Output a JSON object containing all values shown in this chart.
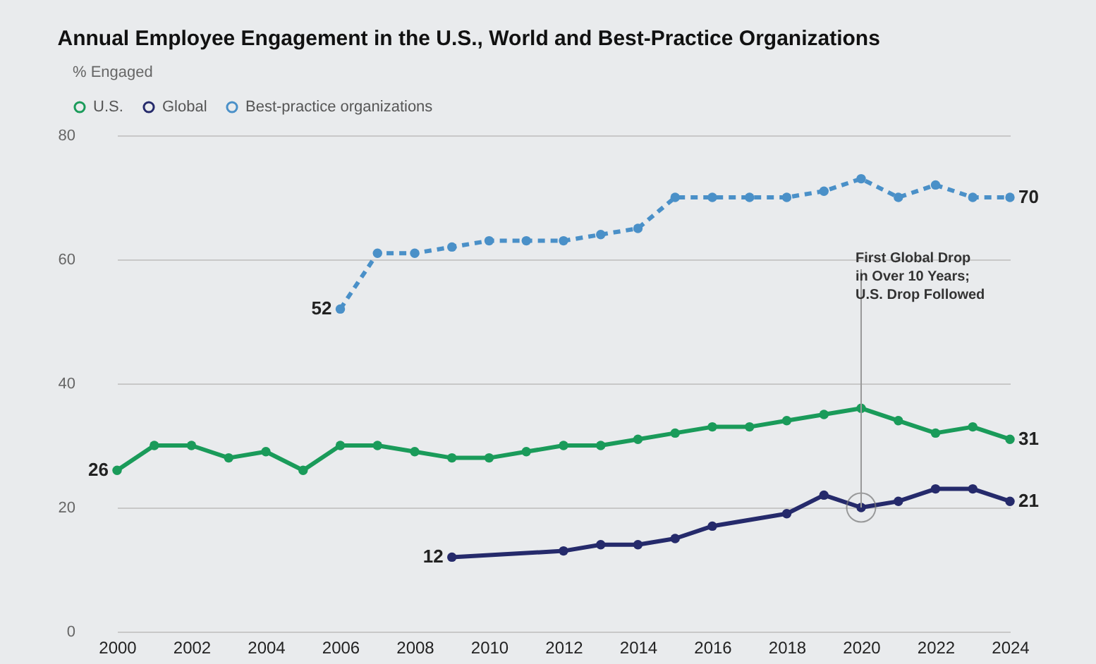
{
  "chart_data": {
    "type": "line",
    "title": "Annual Employee Engagement in the U.S., World and Best-Practice Organizations",
    "ylabel": "% Engaged",
    "xlim": [
      2000,
      2024
    ],
    "xticks": [
      2000,
      2002,
      2004,
      2006,
      2008,
      2010,
      2012,
      2014,
      2016,
      2018,
      2020,
      2022,
      2024
    ],
    "ylim": [
      0,
      80
    ],
    "yticks": [
      0,
      20,
      40,
      60,
      80
    ],
    "grid": "y",
    "legend": "top left",
    "marker": "circle",
    "annotations": [
      {
        "text": "First Global Drop\nin Over 10 Years;\nU.S. Drop Followed",
        "x": 2020,
        "y": 20
      }
    ],
    "series": [
      {
        "name": "U.S.",
        "color": "#1a9b5a",
        "line_style": "solid",
        "x": [
          2000,
          2001,
          2002,
          2003,
          2004,
          2005,
          2006,
          2007,
          2008,
          2009,
          2010,
          2011,
          2012,
          2013,
          2014,
          2015,
          2016,
          2017,
          2018,
          2019,
          2020,
          2021,
          2022,
          2023,
          2024
        ],
        "values": [
          26,
          30,
          30,
          28,
          29,
          26,
          30,
          30,
          29,
          28,
          28,
          29,
          30,
          30,
          31,
          32,
          33,
          33,
          34,
          35,
          36,
          34,
          32,
          33,
          31
        ],
        "value_labels": [
          "26",
          null,
          null,
          null,
          null,
          null,
          null,
          null,
          null,
          null,
          null,
          null,
          null,
          null,
          null,
          null,
          null,
          null,
          null,
          null,
          null,
          null,
          null,
          null,
          "31"
        ]
      },
      {
        "name": "Global",
        "color": "#252a6b",
        "line_style": "solid",
        "x": [
          2009,
          2012,
          2013,
          2014,
          2015,
          2016,
          2018,
          2019,
          2020,
          2021,
          2022,
          2023,
          2024
        ],
        "values": [
          12,
          13,
          14,
          14,
          15,
          17,
          19,
          22,
          20,
          21,
          23,
          23,
          21
        ],
        "value_labels": [
          "12",
          null,
          null,
          null,
          null,
          null,
          null,
          null,
          null,
          null,
          null,
          null,
          "21"
        ]
      },
      {
        "name": "Best-practice organizations",
        "color": "#4a90c8",
        "line_style": "dashed",
        "x": [
          2006,
          2007,
          2008,
          2009,
          2010,
          2011,
          2012,
          2013,
          2014,
          2015,
          2016,
          2017,
          2018,
          2019,
          2020,
          2021,
          2022,
          2023,
          2024
        ],
        "values": [
          52,
          61,
          61,
          62,
          63,
          63,
          63,
          64,
          65,
          70,
          70,
          70,
          70,
          71,
          73,
          70,
          72,
          70,
          70
        ],
        "value_labels": [
          "52",
          null,
          null,
          null,
          null,
          null,
          null,
          null,
          null,
          null,
          null,
          null,
          null,
          null,
          null,
          null,
          null,
          null,
          "70"
        ]
      }
    ]
  }
}
